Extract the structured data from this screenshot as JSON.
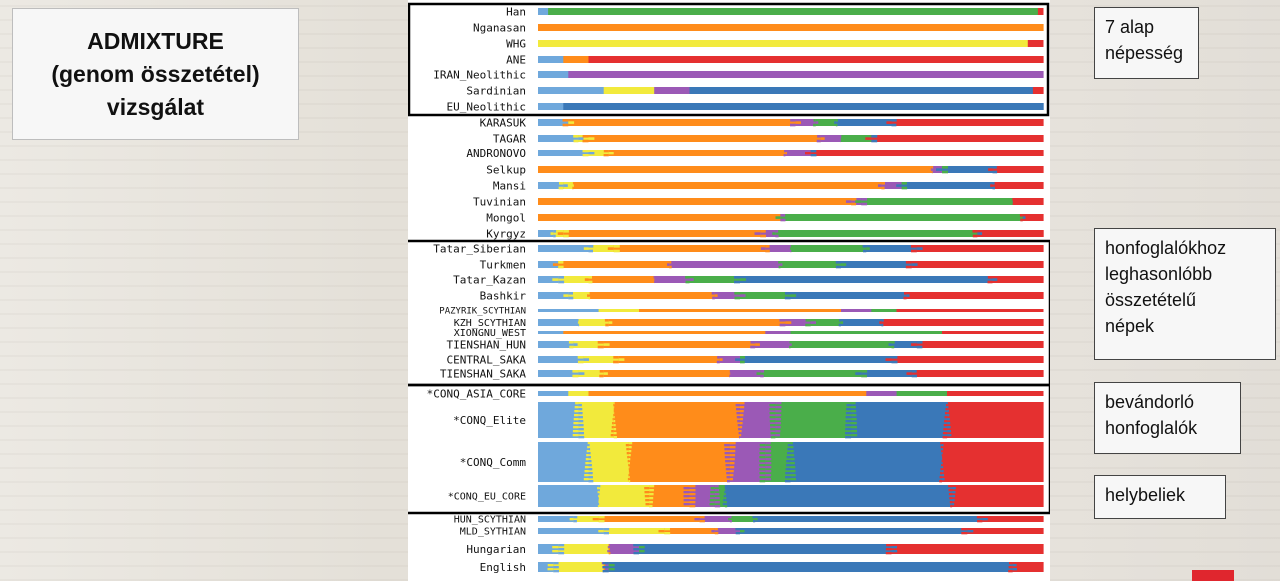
{
  "title_lines": [
    "ADMIXTURE",
    "(genom összetétel)",
    "vizsgálat"
  ],
  "annotations": [
    {
      "lines": [
        "7 alap",
        "népesség"
      ]
    },
    {
      "lines": [
        "honfoglalókhoz",
        "leghasonlóbb",
        "összetételű",
        "népek"
      ]
    },
    {
      "lines": [
        "bevándorló",
        "honfoglalók"
      ]
    },
    {
      "lines": [
        "helybeliek"
      ]
    }
  ],
  "chart_data": {
    "type": "bar",
    "orientation": "horizontal-stacked-100",
    "component_colors": [
      "#6fa8dc",
      "#f2ea3c",
      "#ff8c1a",
      "#9b59b6",
      "#4aae4a",
      "#3a78b8",
      "#e53030"
    ],
    "categories": [
      "Han",
      "Nganasan",
      "WHG",
      "ANE",
      "IRAN_Neolithic",
      "Sardinian",
      "EU_Neolithic",
      "KARASUK",
      "TAGAR",
      "ANDRONOVO",
      "Selkup",
      "Mansi",
      "Tuvinian",
      "Mongol",
      "Kyrgyz",
      "Tatar_Siberian",
      "Turkmen",
      "Tatar_Kazan",
      "Bashkir",
      "PAZYRIK_SCYTHIAN",
      "KZH_SCYTHIAN",
      "XIONGNU_WEST",
      "TIENSHAN_HUN",
      "CENTRAL_SAKA",
      "TIENSHAN_SAKA",
      "*CONQ_ASIA_CORE",
      "*CONQ_Elite",
      "*CONQ_Comm",
      "*CONQ_EU_CORE",
      "HUN_SCYTHIAN",
      "MLD_SYTHIAN",
      "Hungarian",
      "English"
    ],
    "values": [
      [
        0.02,
        0,
        0,
        0,
        0.97,
        0,
        0.01
      ],
      [
        0,
        0,
        1.0,
        0,
        0,
        0,
        0
      ],
      [
        0,
        0.97,
        0,
        0,
        0,
        0,
        0.03
      ],
      [
        0.05,
        0,
        0.05,
        0,
        0,
        0,
        0.9
      ],
      [
        0.06,
        0,
        0,
        0.94,
        0,
        0,
        0
      ],
      [
        0.13,
        0.1,
        0,
        0.07,
        0,
        0.68,
        0.02
      ],
      [
        0.05,
        0,
        0,
        0,
        0,
        0.95,
        0
      ],
      [
        0.06,
        0,
        0.45,
        0.04,
        0.04,
        0.11,
        0.3
      ],
      [
        0.08,
        0.02,
        0.46,
        0.04,
        0.06,
        0,
        0.34
      ],
      [
        0.1,
        0.04,
        0.35,
        0.05,
        0,
        0,
        0.46
      ],
      [
        0,
        0,
        0.78,
        0.02,
        0,
        0.1,
        0.1
      ],
      [
        0.05,
        0.02,
        0.61,
        0.04,
        0,
        0.18,
        0.1
      ],
      [
        0,
        0,
        0.62,
        0.02,
        0.3,
        0,
        0.06
      ],
      [
        0,
        0,
        0.48,
        0,
        0.48,
        0,
        0.04
      ],
      [
        0.03,
        0.02,
        0.39,
        0.03,
        0.4,
        0,
        0.13
      ],
      [
        0.1,
        0.05,
        0.3,
        0.05,
        0.15,
        0.1,
        0.25
      ],
      [
        0.04,
        0,
        0.22,
        0.22,
        0.12,
        0.14,
        0.26
      ],
      [
        0.04,
        0.06,
        0.13,
        0.07,
        0.1,
        0.5,
        0.1
      ],
      [
        0.06,
        0.04,
        0.25,
        0.05,
        0.1,
        0.23,
        0.27
      ],
      [
        0.12,
        0.08,
        0.4,
        0.06,
        0.05,
        0,
        0.29
      ],
      [
        0.08,
        0.06,
        0.35,
        0.05,
        0.06,
        0.08,
        0.32
      ],
      [
        0.05,
        0,
        0.4,
        0.05,
        0.3,
        0,
        0.2
      ],
      [
        0.07,
        0.06,
        0.3,
        0.07,
        0.2,
        0.05,
        0.25
      ],
      [
        0.09,
        0.07,
        0.2,
        0.04,
        0,
        0.3,
        0.3
      ],
      [
        0.08,
        0.05,
        0.25,
        0.06,
        0.2,
        0.1,
        0.26
      ],
      [
        0.06,
        0.04,
        0.55,
        0.06,
        0.1,
        0,
        0.19
      ],
      [
        0.08,
        0.07,
        0.25,
        0.07,
        0.15,
        0.19,
        0.19
      ],
      [
        0.1,
        0.08,
        0.2,
        0.07,
        0.05,
        0.3,
        0.2
      ],
      [
        0.12,
        0.1,
        0.08,
        0.05,
        0.02,
        0.45,
        0.18
      ],
      [
        0.07,
        0.05,
        0.2,
        0.06,
        0.05,
        0.45,
        0.12
      ],
      [
        0.13,
        0.12,
        0.1,
        0.05,
        0,
        0.45,
        0.15
      ],
      [
        0.04,
        0.1,
        0,
        0.06,
        0,
        0.5,
        0.3
      ],
      [
        0.03,
        0.1,
        0,
        0.01,
        0,
        0.8,
        0.06
      ]
    ],
    "xlim": [
      0,
      1
    ]
  }
}
